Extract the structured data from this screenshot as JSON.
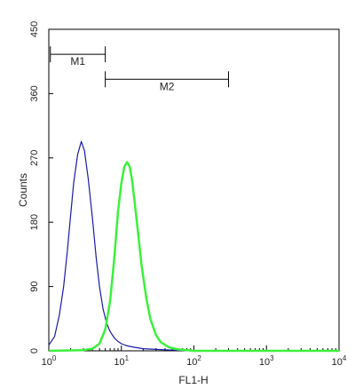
{
  "chart_data": {
    "type": "line",
    "title": "",
    "xlabel": "FL1-H",
    "ylabel": "Counts",
    "x_scale": "log",
    "xlim": [
      1,
      10000
    ],
    "ylim": [
      0,
      450
    ],
    "x_ticks": [
      {
        "base": "10",
        "exp": "0",
        "value": 1
      },
      {
        "base": "10",
        "exp": "1",
        "value": 10
      },
      {
        "base": "10",
        "exp": "2",
        "value": 100
      },
      {
        "base": "10",
        "exp": "3",
        "value": 1000
      },
      {
        "base": "10",
        "exp": "4",
        "value": 10000
      }
    ],
    "y_ticks": [
      "0",
      "90",
      "180",
      "270",
      "360",
      "450"
    ],
    "series": [
      {
        "color": "#1a1aa8",
        "points": [
          [
            1.0,
            8
          ],
          [
            1.2,
            20
          ],
          [
            1.4,
            50
          ],
          [
            1.6,
            90
          ],
          [
            1.8,
            140
          ],
          [
            2.0,
            190
          ],
          [
            2.2,
            235
          ],
          [
            2.5,
            275
          ],
          [
            2.8,
            293
          ],
          [
            3.1,
            280
          ],
          [
            3.5,
            240
          ],
          [
            4.0,
            185
          ],
          [
            4.5,
            130
          ],
          [
            5.0,
            90
          ],
          [
            5.6,
            58
          ],
          [
            6.3,
            38
          ],
          [
            7.0,
            27
          ],
          [
            8.0,
            18
          ],
          [
            9.0,
            13
          ],
          [
            10,
            10
          ],
          [
            12,
            7
          ],
          [
            15,
            5
          ],
          [
            20,
            3
          ],
          [
            30,
            2
          ],
          [
            50,
            1
          ],
          [
            100,
            0
          ],
          [
            1000,
            0
          ],
          [
            10000,
            0
          ]
        ]
      },
      {
        "color": "#3cf03c",
        "points": [
          [
            1.0,
            0
          ],
          [
            3.0,
            1
          ],
          [
            4.0,
            3
          ],
          [
            5.0,
            10
          ],
          [
            6.0,
            30
          ],
          [
            7.0,
            70
          ],
          [
            8.0,
            130
          ],
          [
            9.0,
            195
          ],
          [
            10,
            235
          ],
          [
            11,
            258
          ],
          [
            12,
            264
          ],
          [
            13,
            258
          ],
          [
            14,
            240
          ],
          [
            15,
            215
          ],
          [
            17,
            165
          ],
          [
            19,
            120
          ],
          [
            22,
            75
          ],
          [
            25,
            45
          ],
          [
            30,
            22
          ],
          [
            35,
            12
          ],
          [
            45,
            5
          ],
          [
            60,
            2
          ],
          [
            80,
            1
          ],
          [
            100,
            0
          ],
          [
            1000,
            0
          ],
          [
            10000,
            0
          ]
        ]
      }
    ],
    "markers": [
      {
        "label": "M1",
        "x_start": 1.05,
        "x_end": 6.0,
        "y": 415
      },
      {
        "label": "M2",
        "x_start": 6.0,
        "x_end": 300,
        "y": 380
      }
    ],
    "grid": false,
    "legend": "none"
  }
}
